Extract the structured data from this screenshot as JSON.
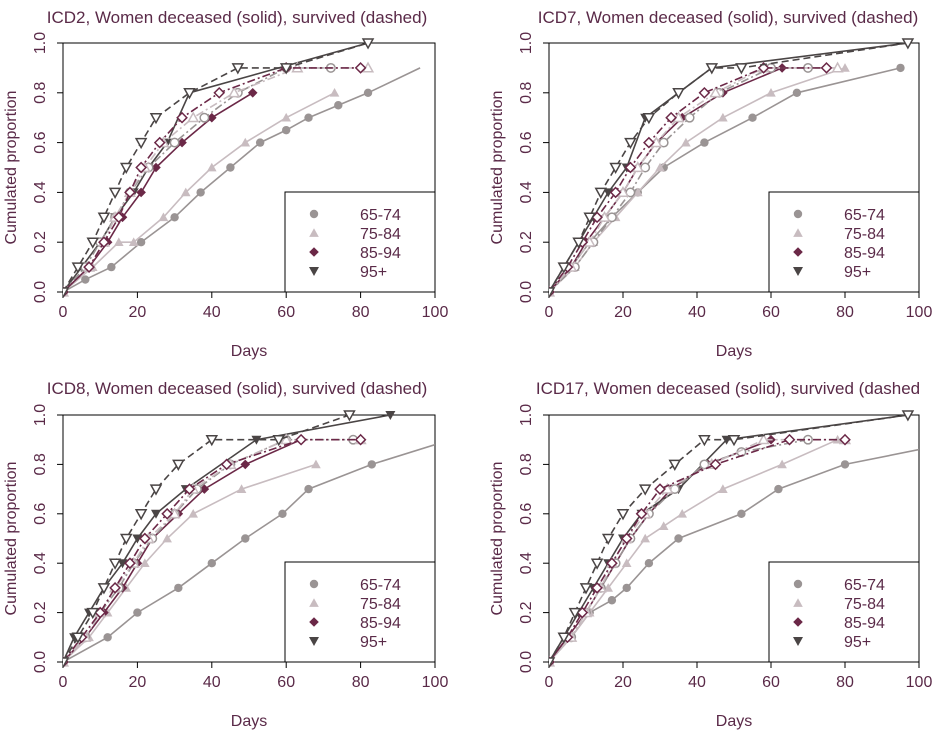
{
  "legend_labels": [
    "65-74",
    "75-84",
    "85-94",
    "95+"
  ],
  "colors": {
    "text": "#5a2a48",
    "axis": "#000000",
    "g1": "#9a9494",
    "g2": "#c8bcc0",
    "g3": "#6b2847",
    "g4": "#4a4545"
  },
  "chart_data": [
    {
      "type": "line",
      "title": "ICD2, Women deceased (solid), survived (dashed)",
      "xlabel": "Days",
      "ylabel": "Cumulated proportion",
      "xlim": [
        0,
        100
      ],
      "ylim": [
        0,
        1.0
      ],
      "xticks": [
        "0",
        "20",
        "40",
        "60",
        "80",
        "100"
      ],
      "yticks": [
        "0.0",
        "0.2",
        "0.4",
        "0.6",
        "0.8",
        "1.0"
      ],
      "legend": "bottom-right",
      "series": [
        {
          "name": "65-74",
          "style": "solid",
          "filled": true,
          "x": [
            0,
            6,
            13,
            21,
            30,
            37,
            45,
            53,
            60,
            66,
            74,
            82,
            96
          ],
          "y": [
            0,
            0.05,
            0.1,
            0.2,
            0.3,
            0.4,
            0.5,
            0.6,
            0.65,
            0.7,
            0.75,
            0.8,
            0.9
          ]
        },
        {
          "name": "75-84",
          "style": "solid",
          "filled": true,
          "x": [
            0,
            8,
            15,
            19,
            27,
            33,
            40,
            49,
            60,
            73
          ],
          "y": [
            0,
            0.1,
            0.2,
            0.2,
            0.3,
            0.4,
            0.5,
            0.6,
            0.7,
            0.8
          ]
        },
        {
          "name": "85-94",
          "style": "solid",
          "filled": true,
          "x": [
            0,
            7,
            12,
            16,
            21,
            25,
            32,
            40,
            51
          ],
          "y": [
            0,
            0.1,
            0.2,
            0.3,
            0.4,
            0.5,
            0.6,
            0.7,
            0.8
          ]
        },
        {
          "name": "95+",
          "style": "solid",
          "filled": true,
          "x": [
            0,
            5,
            10,
            14,
            19,
            23,
            28,
            34,
            82
          ],
          "y": [
            0,
            0.1,
            0.2,
            0.3,
            0.4,
            0.5,
            0.6,
            0.8,
            1.0
          ]
        },
        {
          "name": "65-74",
          "style": "dashed",
          "filled": false,
          "x": [
            0,
            6,
            10,
            14,
            18,
            23,
            30,
            38,
            47,
            60,
            72
          ],
          "y": [
            0,
            0.1,
            0.2,
            0.3,
            0.4,
            0.5,
            0.6,
            0.7,
            0.8,
            0.9,
            0.9
          ]
        },
        {
          "name": "75-84",
          "style": "dashed",
          "filled": false,
          "x": [
            0,
            7,
            11,
            14,
            18,
            22,
            27,
            35,
            46,
            63,
            82
          ],
          "y": [
            0,
            0.1,
            0.2,
            0.3,
            0.4,
            0.5,
            0.6,
            0.7,
            0.8,
            0.9,
            0.9
          ]
        },
        {
          "name": "85-94",
          "style": "dashed",
          "filled": false,
          "x": [
            0,
            7,
            11,
            15,
            18,
            21,
            26,
            32,
            42,
            60,
            80
          ],
          "y": [
            0,
            0.1,
            0.2,
            0.3,
            0.4,
            0.5,
            0.6,
            0.7,
            0.8,
            0.9,
            0.9
          ]
        },
        {
          "name": "95+",
          "style": "dashed",
          "filled": false,
          "x": [
            0,
            4,
            8,
            11,
            14,
            17,
            21,
            25,
            34,
            47,
            60,
            82
          ],
          "y": [
            0,
            0.1,
            0.2,
            0.3,
            0.4,
            0.5,
            0.6,
            0.7,
            0.8,
            0.9,
            0.9,
            1.0
          ]
        }
      ]
    },
    {
      "type": "line",
      "title": "ICD7, Women deceased (solid), survived (dashed)",
      "xlabel": "Days",
      "ylabel": "Cumulated proportion",
      "xlim": [
        0,
        100
      ],
      "ylim": [
        0,
        1.0
      ],
      "xticks": [
        "0",
        "20",
        "40",
        "60",
        "80",
        "100"
      ],
      "yticks": [
        "0.0",
        "0.2",
        "0.4",
        "0.6",
        "0.8",
        "1.0"
      ],
      "legend": "bottom-right",
      "series": [
        {
          "name": "65-74",
          "style": "solid",
          "filled": true,
          "x": [
            0,
            6,
            11,
            17,
            24,
            31,
            42,
            55,
            67,
            95
          ],
          "y": [
            0,
            0.1,
            0.2,
            0.3,
            0.4,
            0.5,
            0.6,
            0.7,
            0.8,
            0.9
          ]
        },
        {
          "name": "75-84",
          "style": "solid",
          "filled": true,
          "x": [
            0,
            7,
            12,
            18,
            24,
            30,
            37,
            47,
            60,
            80
          ],
          "y": [
            0,
            0.1,
            0.2,
            0.3,
            0.4,
            0.5,
            0.6,
            0.7,
            0.8,
            0.9
          ]
        },
        {
          "name": "85-94",
          "style": "solid",
          "filled": true,
          "x": [
            0,
            6,
            10,
            15,
            20,
            24,
            29,
            36,
            47,
            63
          ],
          "y": [
            0,
            0.1,
            0.2,
            0.3,
            0.4,
            0.5,
            0.6,
            0.7,
            0.8,
            0.9
          ]
        },
        {
          "name": "95+",
          "style": "solid",
          "filled": true,
          "x": [
            0,
            4,
            8,
            12,
            16,
            21,
            26,
            35,
            44,
            97
          ],
          "y": [
            0,
            0.1,
            0.2,
            0.3,
            0.4,
            0.5,
            0.7,
            0.8,
            0.9,
            1.0
          ]
        },
        {
          "name": "65-74",
          "style": "dashed",
          "filled": false,
          "x": [
            0,
            7,
            12,
            17,
            22,
            26,
            31,
            38,
            46,
            60,
            70
          ],
          "y": [
            0,
            0.1,
            0.2,
            0.3,
            0.4,
            0.5,
            0.6,
            0.7,
            0.8,
            0.9,
            0.9
          ]
        },
        {
          "name": "75-84",
          "style": "dashed",
          "filled": false,
          "x": [
            0,
            6,
            11,
            15,
            20,
            24,
            29,
            35,
            45,
            58,
            78
          ],
          "y": [
            0,
            0.1,
            0.2,
            0.3,
            0.4,
            0.5,
            0.6,
            0.7,
            0.8,
            0.9,
            0.9
          ]
        },
        {
          "name": "85-94",
          "style": "dashed",
          "filled": false,
          "x": [
            0,
            5,
            9,
            13,
            18,
            22,
            27,
            33,
            42,
            58,
            75
          ],
          "y": [
            0,
            0.1,
            0.2,
            0.3,
            0.4,
            0.5,
            0.6,
            0.7,
            0.8,
            0.9,
            0.9
          ]
        },
        {
          "name": "95+",
          "style": "dashed",
          "filled": false,
          "x": [
            0,
            4,
            8,
            11,
            14,
            18,
            22,
            27,
            35,
            44,
            52,
            97
          ],
          "y": [
            0,
            0.1,
            0.2,
            0.3,
            0.4,
            0.5,
            0.6,
            0.7,
            0.8,
            0.9,
            0.9,
            1.0
          ]
        }
      ]
    },
    {
      "type": "line",
      "title": "ICD8, Women deceased (solid), survived (dashed)",
      "xlabel": "Days",
      "ylabel": "Cumulated proportion",
      "xlim": [
        0,
        100
      ],
      "ylim": [
        0,
        1.0
      ],
      "xticks": [
        "0",
        "20",
        "40",
        "60",
        "80",
        "100"
      ],
      "yticks": [
        "0.0",
        "0.2",
        "0.4",
        "0.6",
        "0.8",
        "1.0"
      ],
      "legend": "bottom-right",
      "series": [
        {
          "name": "65-74",
          "style": "solid",
          "filled": true,
          "x": [
            0,
            12,
            20,
            31,
            40,
            49,
            59,
            66,
            83,
            100
          ],
          "y": [
            0,
            0.1,
            0.2,
            0.3,
            0.4,
            0.5,
            0.6,
            0.7,
            0.8,
            0.88
          ]
        },
        {
          "name": "75-84",
          "style": "solid",
          "filled": true,
          "x": [
            0,
            7,
            12,
            17,
            22,
            28,
            35,
            48,
            68
          ],
          "y": [
            0,
            0.1,
            0.2,
            0.3,
            0.4,
            0.5,
            0.6,
            0.7,
            0.8
          ]
        },
        {
          "name": "85-94",
          "style": "solid",
          "filled": true,
          "x": [
            0,
            6,
            11,
            16,
            20,
            24,
            31,
            38,
            49,
            64
          ],
          "y": [
            0,
            0.1,
            0.2,
            0.3,
            0.4,
            0.5,
            0.6,
            0.7,
            0.8,
            0.9
          ]
        },
        {
          "name": "95+",
          "style": "solid",
          "filled": true,
          "x": [
            0,
            3,
            7,
            11,
            16,
            20,
            25,
            33,
            52,
            88
          ],
          "y": [
            0,
            0.1,
            0.2,
            0.3,
            0.4,
            0.5,
            0.6,
            0.7,
            0.9,
            1.0
          ]
        },
        {
          "name": "65-74",
          "style": "dashed",
          "filled": false,
          "x": [
            0,
            6,
            10,
            15,
            19,
            24,
            30,
            36,
            45,
            60,
            78
          ],
          "y": [
            0,
            0.1,
            0.2,
            0.3,
            0.4,
            0.5,
            0.6,
            0.7,
            0.8,
            0.9,
            0.9
          ]
        },
        {
          "name": "75-84",
          "style": "dashed",
          "filled": false,
          "x": [
            0,
            6,
            10,
            14,
            19,
            23,
            30,
            35,
            45,
            60,
            80
          ],
          "y": [
            0,
            0.1,
            0.2,
            0.3,
            0.4,
            0.5,
            0.6,
            0.7,
            0.8,
            0.9,
            0.9
          ]
        },
        {
          "name": "85-94",
          "style": "dashed",
          "filled": false,
          "x": [
            0,
            5,
            10,
            14,
            18,
            22,
            28,
            34,
            44,
            64,
            80
          ],
          "y": [
            0,
            0.1,
            0.2,
            0.3,
            0.4,
            0.5,
            0.6,
            0.7,
            0.8,
            0.9,
            0.9
          ]
        },
        {
          "name": "95+",
          "style": "dashed",
          "filled": false,
          "x": [
            0,
            4,
            8,
            11,
            14,
            17,
            21,
            25,
            31,
            40,
            58,
            77
          ],
          "y": [
            0,
            0.1,
            0.2,
            0.3,
            0.4,
            0.5,
            0.6,
            0.7,
            0.8,
            0.9,
            0.9,
            1.0
          ]
        }
      ]
    },
    {
      "type": "line",
      "title": "ICD17, Women deceased (solid), survived (dashed",
      "xlabel": "Days",
      "ylabel": "Cumulated proportion",
      "xlim": [
        0,
        100
      ],
      "ylim": [
        0,
        1.0
      ],
      "xticks": [
        "0",
        "20",
        "40",
        "60",
        "80",
        "100"
      ],
      "yticks": [
        "0.0",
        "0.2",
        "0.4",
        "0.6",
        "0.8",
        "1.0"
      ],
      "legend": "bottom-right",
      "series": [
        {
          "name": "65-74",
          "style": "solid",
          "filled": true,
          "x": [
            0,
            6,
            11,
            17,
            21,
            27,
            35,
            52,
            62,
            80,
            100
          ],
          "y": [
            0,
            0.1,
            0.2,
            0.25,
            0.3,
            0.4,
            0.5,
            0.6,
            0.7,
            0.8,
            0.86
          ]
        },
        {
          "name": "75-84",
          "style": "solid",
          "filled": true,
          "x": [
            0,
            6,
            11,
            16,
            21,
            26,
            31,
            36,
            47,
            63,
            78
          ],
          "y": [
            0,
            0.1,
            0.2,
            0.3,
            0.4,
            0.5,
            0.55,
            0.6,
            0.7,
            0.8,
            0.9
          ]
        },
        {
          "name": "85-94",
          "style": "solid",
          "filled": true,
          "x": [
            0,
            5,
            10,
            14,
            18,
            22,
            27,
            33,
            43,
            60
          ],
          "y": [
            0,
            0.1,
            0.2,
            0.3,
            0.4,
            0.5,
            0.6,
            0.7,
            0.8,
            0.9
          ]
        },
        {
          "name": "95+",
          "style": "solid",
          "filled": true,
          "x": [
            0,
            4,
            8,
            12,
            16,
            20,
            25,
            35,
            48,
            97
          ],
          "y": [
            0,
            0.1,
            0.2,
            0.3,
            0.4,
            0.5,
            0.6,
            0.7,
            0.9,
            1.0
          ]
        },
        {
          "name": "65-74",
          "style": "dashed",
          "filled": false,
          "x": [
            0,
            6,
            10,
            14,
            18,
            22,
            27,
            34,
            42,
            52,
            70
          ],
          "y": [
            0,
            0.1,
            0.2,
            0.3,
            0.4,
            0.5,
            0.6,
            0.7,
            0.8,
            0.85,
            0.9
          ]
        },
        {
          "name": "75-84",
          "style": "dashed",
          "filled": false,
          "x": [
            0,
            6,
            10,
            14,
            17,
            21,
            26,
            32,
            44,
            58,
            80
          ],
          "y": [
            0,
            0.1,
            0.2,
            0.3,
            0.4,
            0.5,
            0.6,
            0.7,
            0.8,
            0.9,
            0.9
          ]
        },
        {
          "name": "85-94",
          "style": "dashed",
          "filled": false,
          "x": [
            0,
            5,
            9,
            13,
            17,
            21,
            25,
            30,
            45,
            65,
            80
          ],
          "y": [
            0,
            0.1,
            0.2,
            0.3,
            0.4,
            0.5,
            0.6,
            0.7,
            0.8,
            0.9,
            0.9
          ]
        },
        {
          "name": "95+",
          "style": "dashed",
          "filled": false,
          "x": [
            0,
            4,
            7,
            10,
            13,
            16,
            20,
            26,
            34,
            42,
            50,
            97
          ],
          "y": [
            0,
            0.1,
            0.2,
            0.3,
            0.4,
            0.5,
            0.6,
            0.7,
            0.8,
            0.9,
            0.9,
            1.0
          ]
        }
      ]
    }
  ]
}
